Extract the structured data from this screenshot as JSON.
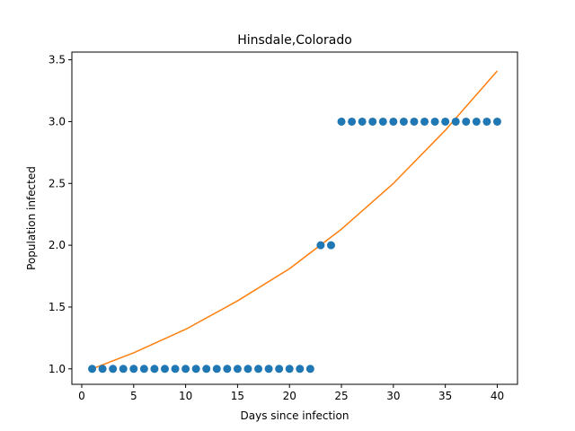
{
  "chart_data": {
    "type": "scatter",
    "title": "Hinsdale,Colorado",
    "xlabel": "Days since infection",
    "ylabel": "Population infected",
    "xlim": [
      -0.95,
      41.95
    ],
    "ylim": [
      0.875,
      3.5625
    ],
    "xticks": [
      0,
      5,
      10,
      15,
      20,
      25,
      30,
      35,
      40
    ],
    "yticks": [
      1.0,
      1.5,
      2.0,
      2.5,
      3.0,
      3.5
    ],
    "grid": false,
    "legend": "none",
    "series": [
      {
        "kind": "scatter",
        "color": "#1f77b4",
        "x": [
          1,
          2,
          3,
          4,
          5,
          6,
          7,
          8,
          9,
          10,
          11,
          12,
          13,
          14,
          15,
          16,
          17,
          18,
          19,
          20,
          21,
          22,
          23,
          24,
          25,
          26,
          27,
          28,
          29,
          30,
          31,
          32,
          33,
          34,
          35,
          36,
          37,
          38,
          39,
          40
        ],
        "y": [
          1,
          1,
          1,
          1,
          1,
          1,
          1,
          1,
          1,
          1,
          1,
          1,
          1,
          1,
          1,
          1,
          1,
          1,
          1,
          1,
          1,
          1,
          2,
          2,
          3,
          3,
          3,
          3,
          3,
          3,
          3,
          3,
          3,
          3,
          3,
          3,
          3,
          3,
          3,
          3
        ]
      },
      {
        "kind": "line",
        "color": "#ff7f0e",
        "x": [
          1,
          5,
          10,
          15,
          20,
          25,
          30,
          35,
          40
        ],
        "y": [
          1.0,
          1.13,
          1.32,
          1.55,
          1.81,
          2.13,
          2.5,
          2.93,
          3.41
        ]
      }
    ]
  }
}
